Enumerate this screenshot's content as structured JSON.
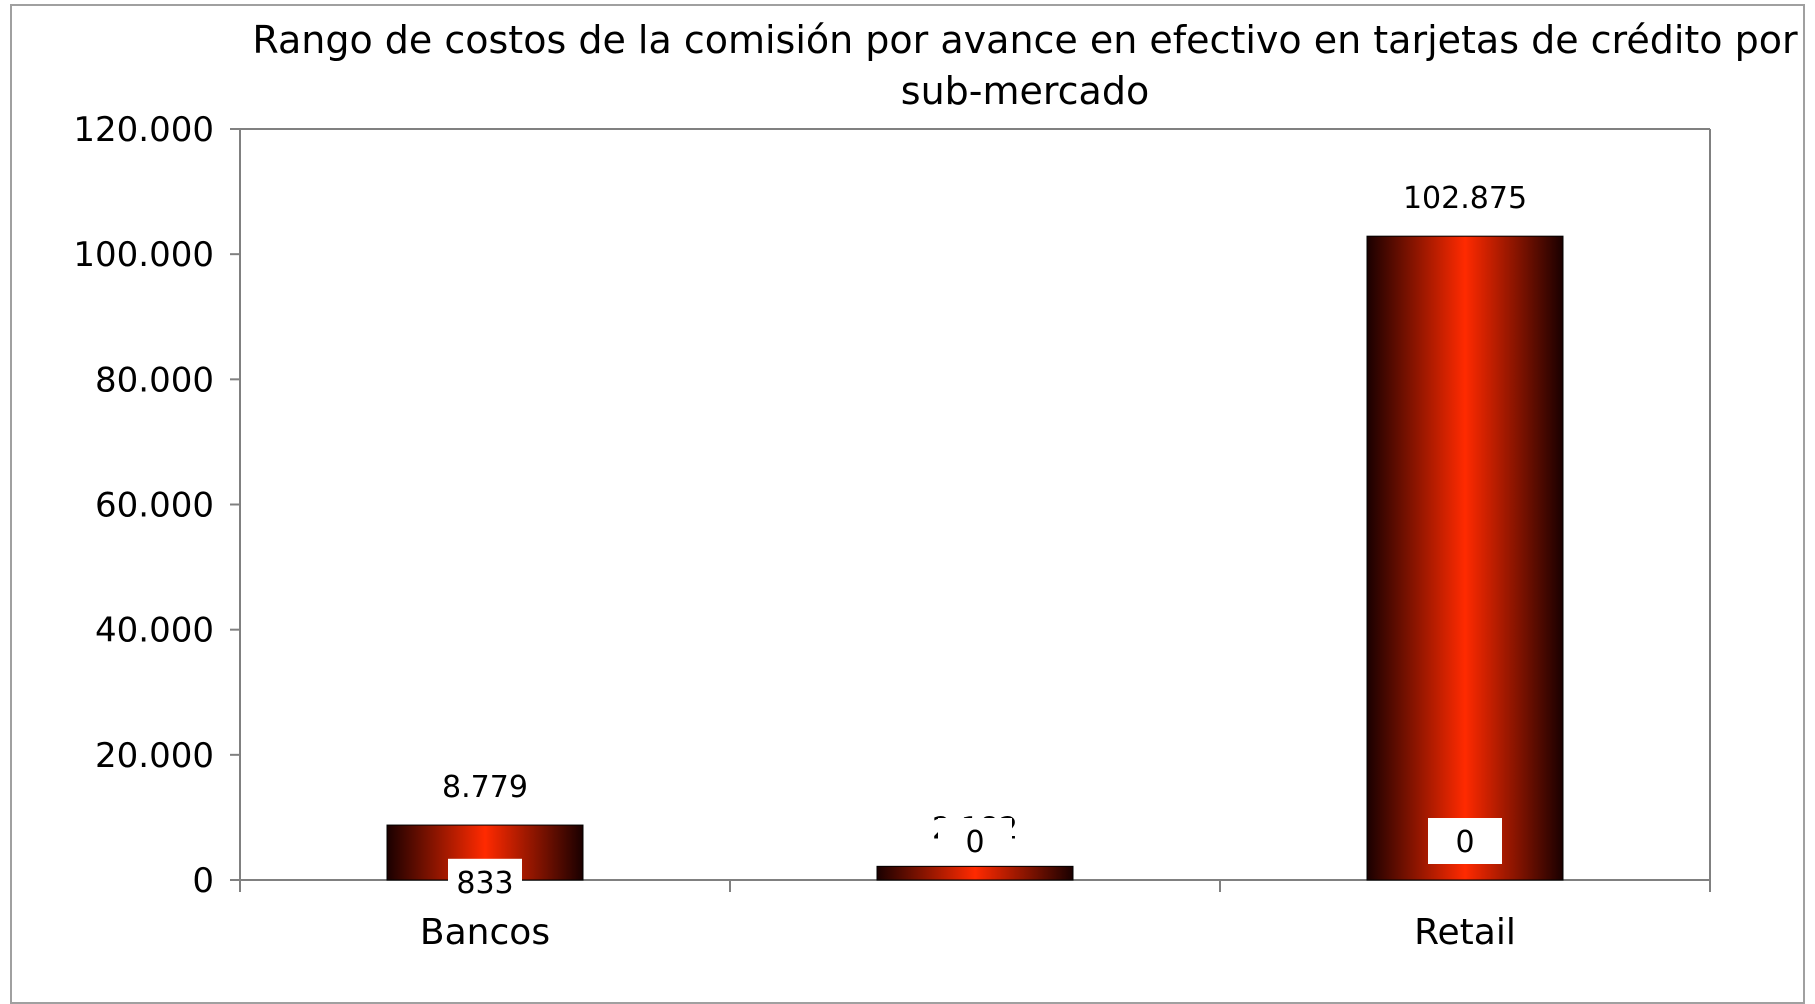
{
  "chart_data": {
    "type": "bar",
    "title_lines": [
      "Rango de costos de la comisión por avance en efectivo en tarjetas de crédito por",
      "sub-mercado"
    ],
    "xlabel": "",
    "ylabel": "",
    "categories": [
      "Bancos",
      "",
      "Retail"
    ],
    "series": [
      {
        "values": [
          8779,
          2182,
          102875
        ]
      },
      {
        "values": [
          833,
          0,
          0
        ]
      }
    ],
    "top_labels": [
      "8.779",
      "2.182",
      "102.875"
    ],
    "bottom_labels": [
      "833",
      "0",
      "0"
    ],
    "y_ticks": [
      0,
      20000,
      40000,
      60000,
      80000,
      100000,
      120000
    ],
    "y_tick_labels": [
      "0",
      "20.000",
      "40.000",
      "60.000",
      "80.000",
      "100.000",
      "120.000"
    ],
    "ylim": [
      0,
      120000
    ],
    "grid": false,
    "legend": "none",
    "colors": {
      "bar_edge": "#1a0000",
      "bar_mid": "#ff2a00",
      "axis": "#808080",
      "frame": "#a0a0a0"
    }
  }
}
